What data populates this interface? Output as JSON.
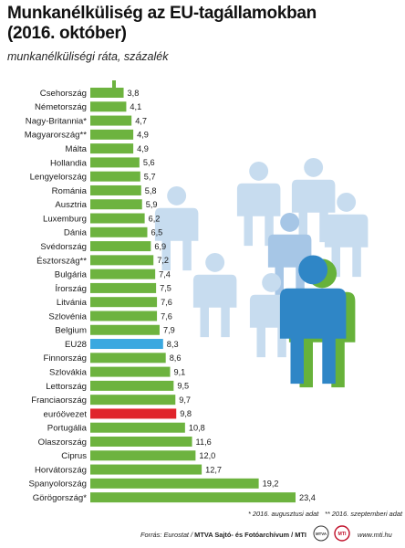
{
  "header": {
    "title_line1": "Munkanélküliség az EU-tagállamokban",
    "title_line2": "(2016. október)",
    "subtitle": "munkanélküliségi ráta, százalék"
  },
  "colors": {
    "bar": "#6db33f",
    "eu28": "#3aa8e0",
    "eurozone": "#e0242b",
    "stem": "#6db33f",
    "figure_light": "#c7dcef",
    "figure_mid": "#a6c6e6",
    "figure_front": "#2f86c6",
    "figure_shadow": "#67b23a"
  },
  "chart_data": {
    "type": "bar",
    "orientation": "horizontal",
    "categories": [
      "Csehország",
      "Németország",
      "Nagy-Britannia*",
      "Magyarország**",
      "Málta",
      "Hollandia",
      "Lengyelország",
      "Románia",
      "Ausztria",
      "Luxemburg",
      "Dánia",
      "Svédország",
      "Észtország**",
      "Bulgária",
      "Írország",
      "Litvánia",
      "Szlovénia",
      "Belgium",
      "EU28",
      "Finnország",
      "Szlovákia",
      "Lettország",
      "Franciaország",
      "euróövezet",
      "Portugália",
      "Olaszország",
      "Ciprus",
      "Horvátország",
      "Spanyolország",
      "Görögország*"
    ],
    "values": [
      3.8,
      4.1,
      4.7,
      4.9,
      4.9,
      5.6,
      5.7,
      5.8,
      5.9,
      6.2,
      6.5,
      6.9,
      7.2,
      7.4,
      7.5,
      7.6,
      7.6,
      7.9,
      8.3,
      8.6,
      9.1,
      9.5,
      9.7,
      9.8,
      10.8,
      11.6,
      12.0,
      12.7,
      19.2,
      23.4
    ],
    "value_labels": [
      "3,8",
      "4,1",
      "4,7",
      "4,9",
      "4,9",
      "5,6",
      "5,7",
      "5,8",
      "5,9",
      "6,2",
      "6,5",
      "6,9",
      "7,2",
      "7,4",
      "7,5",
      "7,6",
      "7,6",
      "7,9",
      "8,3",
      "8,6",
      "9,1",
      "9,5",
      "9,7",
      "9,8",
      "10,8",
      "11,6",
      "12,0",
      "12,7",
      "19,2",
      "23,4"
    ],
    "highlight": {
      "EU28": "eu28",
      "euróövezet": "eurozone"
    },
    "xlim": [
      0,
      23.4
    ],
    "grid": false,
    "legend": "none"
  },
  "footnotes": {
    "note1": "* 2016. augusztusi adat",
    "note2": "** 2016. szeptemberi adat"
  },
  "source": {
    "lead": "Forrás: Eurostat / ",
    "agency": "MTVA Sajtó- és Fotóarchívum / MTI",
    "logo1": "MTVA",
    "logo2": "MTI",
    "url": "www.mti.hu"
  }
}
